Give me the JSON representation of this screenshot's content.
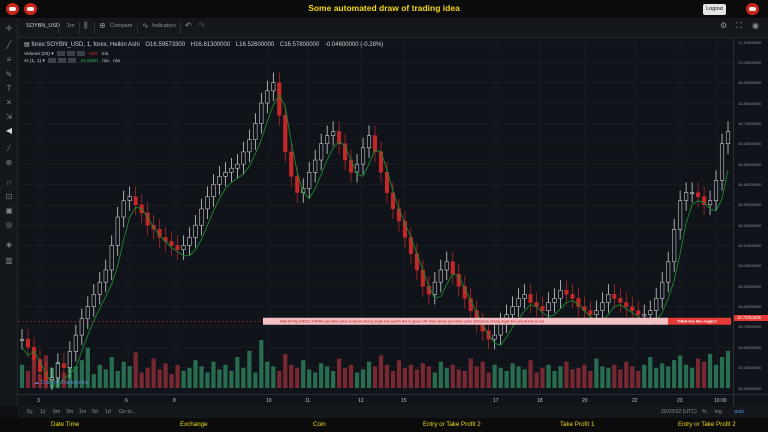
{
  "banner": {
    "title": "Some automated draw of trading idea",
    "logout_label": "Logout"
  },
  "toolbar": {
    "symbol": "SOYBN_USD",
    "interval": "1m",
    "compare_label": "Compare",
    "indicators_label": "Indicators",
    "icons": [
      "candles-icon",
      "compare-icon",
      "indicators-icon",
      "undo-icon",
      "redo-icon",
      "gear-icon",
      "fullscreen-icon",
      "snapshot-icon"
    ]
  },
  "legend": {
    "main": "forex:SOYBN_USD, 1, forex, Heikin Ashi",
    "open": "O16.59573300",
    "high": "H16.61300000",
    "low": "L16.52600000",
    "close": "C16.57800000",
    "change": "-0.04600000 (-0.28%)",
    "volume_label": "Volume (20)",
    "volume_value": "893",
    "volume_na": "n/a",
    "ai_label": "AI (1, 1)",
    "ai_value": "16.5800",
    "ai_na1": "n/a",
    "ai_na2": "n/a"
  },
  "price_axis": {
    "ticks": [
      "17.10000000",
      "17.00000000",
      "16.90000000",
      "16.80000000",
      "16.70000000",
      "16.60000000",
      "16.50000000",
      "16.40000000",
      "16.30000000",
      "16.20000000",
      "16.10000000",
      "16.00000000",
      "15.90000000",
      "15.80000000",
      "15.70000000",
      "15.60000000",
      "15.50000000",
      "15.40000000"
    ],
    "current_price": "15.72811505",
    "current_price_value": 15.728,
    "y_max": 17.1,
    "y_min": 15.4
  },
  "time_axis": {
    "ticks": [
      "3",
      "6",
      "8",
      "10",
      "11",
      "13",
      "15",
      "17",
      "18",
      "20",
      "22",
      "23",
      "10:00"
    ]
  },
  "annotation": {
    "text": "Wait till Flip ENDS  |  DRAW just when   price is above strong angle line and AI line is green      OR        draw above just when price still below strong angle line and AI line is red",
    "tail": "THEN line like magic!!"
  },
  "watermark": "Chart by TradingView",
  "ranges": {
    "items": [
      "5y",
      "1y",
      "6m",
      "3m",
      "1m",
      "5d",
      "1d",
      "Go to..."
    ],
    "clock": "20:03:52 (UTC)",
    "percent": "%",
    "log": "log",
    "auto": "auto"
  },
  "bottom_labels": [
    "Date Time",
    "Exchange",
    "Coin",
    "Entry or Take Profit 2",
    "Take Profit 1",
    "Entry or Take Profit 2"
  ],
  "colors": {
    "banner_text": "#f2d81a",
    "up_wick": "#e8e8e8",
    "down_wick": "#c62828",
    "ai_line": "#1b8a2e",
    "volume_up": "#2e7d5b",
    "volume_down": "#8b2b35",
    "annotation_bg": "#f3c1c3",
    "annotation_tail_bg": "#e53935"
  },
  "chart_data": {
    "type": "line",
    "series": [
      {
        "values": [
          15.64,
          15.6,
          15.54,
          15.48,
          15.44,
          15.45,
          15.52,
          15.5,
          15.58,
          15.66,
          15.74,
          15.8,
          15.86,
          15.92,
          15.98,
          16.1,
          16.24,
          16.32,
          16.34,
          16.3,
          16.26,
          16.2,
          16.18,
          16.14,
          16.12,
          16.1,
          16.08,
          16.1,
          16.14,
          16.2,
          16.28,
          16.34,
          16.4,
          16.44,
          16.46,
          16.48,
          16.5,
          16.56,
          16.62,
          16.7,
          16.8,
          16.86,
          16.9,
          16.74,
          16.56,
          16.44,
          16.36,
          16.38,
          16.46,
          16.52,
          16.6,
          16.64,
          16.66,
          16.6,
          16.52,
          16.46,
          16.5,
          16.58,
          16.64,
          16.56,
          16.46,
          16.36,
          16.28,
          16.22,
          16.14,
          16.06,
          15.98,
          15.9,
          15.86,
          15.92,
          15.98,
          16.02,
          15.96,
          15.9,
          15.84,
          15.78,
          15.72,
          15.68,
          15.64,
          15.66,
          15.72,
          15.76,
          15.8,
          15.84,
          15.86,
          15.82,
          15.8,
          15.78,
          15.82,
          15.84,
          15.88,
          15.86,
          15.84,
          15.8,
          15.78,
          15.76,
          15.78,
          15.82,
          15.86,
          15.84,
          15.82,
          15.8,
          15.78,
          15.76,
          15.76,
          15.78,
          15.84,
          15.92,
          16.02,
          16.18,
          16.32,
          16.36,
          16.36,
          16.34,
          16.3,
          16.32,
          16.42,
          16.6,
          16.66
        ]
      }
    ],
    "volume": [
      30,
      22,
      38,
      18,
      42,
      26,
      34,
      20,
      44,
      28,
      36,
      52,
      18,
      30,
      24,
      40,
      22,
      34,
      28,
      46,
      20,
      26,
      38,
      24,
      32,
      18,
      30,
      22,
      26,
      36,
      28,
      20,
      34,
      24,
      30,
      22,
      40,
      26,
      48,
      20,
      62,
      34,
      28,
      22,
      44,
      30,
      26,
      36,
      24,
      20,
      32,
      28,
      22,
      38,
      26,
      30,
      20,
      24,
      34,
      28,
      42,
      30,
      22,
      36,
      26,
      30,
      24,
      32,
      28,
      20,
      34,
      26,
      30,
      24,
      22,
      38,
      28,
      34,
      20,
      30,
      26,
      22,
      32,
      28,
      24,
      36,
      20,
      26,
      30,
      22,
      28,
      34,
      24,
      26,
      30,
      22,
      38,
      28,
      26,
      30,
      24,
      34,
      28,
      22,
      30,
      40,
      26,
      32,
      28,
      36,
      42,
      30,
      26,
      38,
      34,
      44,
      30,
      40,
      48
    ]
  }
}
